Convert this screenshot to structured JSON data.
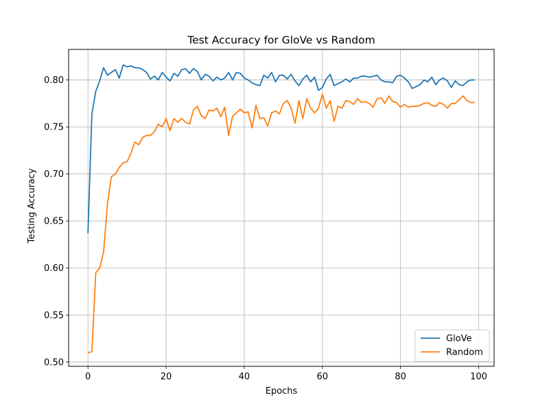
{
  "chart_data": {
    "type": "line",
    "title": "Test Accuracy for GloVe vs Random",
    "xlabel": "Epochs",
    "ylabel": "Testing Accuracy",
    "xlim": [
      -4.95,
      103.95
    ],
    "ylim": [
      0.4955,
      0.8325
    ],
    "xticks": [
      0,
      20,
      40,
      60,
      80,
      100
    ],
    "xtick_labels": [
      "0",
      "20",
      "40",
      "60",
      "80",
      "100"
    ],
    "yticks": [
      0.5,
      0.55,
      0.6,
      0.65,
      0.7,
      0.75,
      0.8
    ],
    "ytick_labels": [
      "0.50",
      "0.55",
      "0.60",
      "0.65",
      "0.70",
      "0.75",
      "0.80"
    ],
    "grid": true,
    "legend_position": "lower-right",
    "x": [
      0,
      1,
      2,
      3,
      4,
      5,
      6,
      7,
      8,
      9,
      10,
      11,
      12,
      13,
      14,
      15,
      16,
      17,
      18,
      19,
      20,
      21,
      22,
      23,
      24,
      25,
      26,
      27,
      28,
      29,
      30,
      31,
      32,
      33,
      34,
      35,
      36,
      37,
      38,
      39,
      40,
      41,
      42,
      43,
      44,
      45,
      46,
      47,
      48,
      49,
      50,
      51,
      52,
      53,
      54,
      55,
      56,
      57,
      58,
      59,
      60,
      61,
      62,
      63,
      64,
      65,
      66,
      67,
      68,
      69,
      70,
      71,
      72,
      73,
      74,
      75,
      76,
      77,
      78,
      79,
      80,
      81,
      82,
      83,
      84,
      85,
      86,
      87,
      88,
      89,
      90,
      91,
      92,
      93,
      94,
      95,
      96,
      97,
      98,
      99
    ],
    "series": [
      {
        "name": "GloVe",
        "color": "#1f77b4",
        "values": [
          0.637,
          0.764,
          0.788,
          0.799,
          0.813,
          0.805,
          0.808,
          0.811,
          0.802,
          0.816,
          0.814,
          0.815,
          0.813,
          0.813,
          0.811,
          0.808,
          0.801,
          0.804,
          0.8,
          0.808,
          0.803,
          0.799,
          0.807,
          0.804,
          0.811,
          0.812,
          0.807,
          0.812,
          0.809,
          0.8,
          0.806,
          0.804,
          0.799,
          0.803,
          0.8,
          0.802,
          0.808,
          0.8,
          0.808,
          0.807,
          0.802,
          0.8,
          0.797,
          0.795,
          0.794,
          0.805,
          0.802,
          0.808,
          0.798,
          0.805,
          0.805,
          0.801,
          0.806,
          0.799,
          0.794,
          0.801,
          0.805,
          0.798,
          0.803,
          0.789,
          0.792,
          0.801,
          0.806,
          0.794,
          0.796,
          0.798,
          0.801,
          0.798,
          0.802,
          0.802,
          0.804,
          0.804,
          0.803,
          0.804,
          0.805,
          0.8,
          0.798,
          0.798,
          0.797,
          0.804,
          0.805,
          0.802,
          0.798,
          0.791,
          0.793,
          0.795,
          0.8,
          0.798,
          0.803,
          0.795,
          0.8,
          0.802,
          0.799,
          0.792,
          0.799,
          0.795,
          0.794,
          0.798,
          0.8,
          0.8
        ]
      },
      {
        "name": "Random",
        "color": "#ff7f0e",
        "values": [
          0.51,
          0.511,
          0.595,
          0.6,
          0.617,
          0.669,
          0.697,
          0.7,
          0.707,
          0.712,
          0.713,
          0.722,
          0.734,
          0.731,
          0.739,
          0.741,
          0.741,
          0.745,
          0.753,
          0.75,
          0.759,
          0.746,
          0.759,
          0.755,
          0.759,
          0.755,
          0.753,
          0.768,
          0.772,
          0.762,
          0.759,
          0.768,
          0.767,
          0.77,
          0.761,
          0.771,
          0.741,
          0.761,
          0.765,
          0.769,
          0.765,
          0.766,
          0.749,
          0.773,
          0.759,
          0.76,
          0.751,
          0.765,
          0.767,
          0.764,
          0.775,
          0.778,
          0.77,
          0.754,
          0.778,
          0.759,
          0.78,
          0.77,
          0.765,
          0.77,
          0.785,
          0.77,
          0.778,
          0.756,
          0.772,
          0.77,
          0.778,
          0.777,
          0.774,
          0.78,
          0.776,
          0.777,
          0.775,
          0.771,
          0.78,
          0.781,
          0.775,
          0.783,
          0.777,
          0.776,
          0.771,
          0.774,
          0.771,
          0.772,
          0.772,
          0.773,
          0.775,
          0.776,
          0.773,
          0.772,
          0.776,
          0.774,
          0.77,
          0.775,
          0.775,
          0.779,
          0.783,
          0.778,
          0.776,
          0.776
        ]
      }
    ]
  }
}
